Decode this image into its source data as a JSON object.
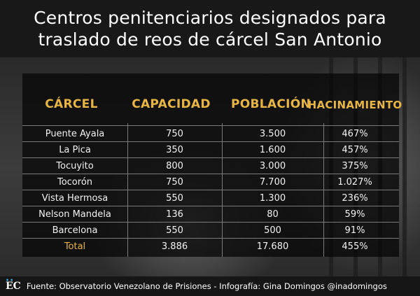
{
  "title": {
    "line1": "Centros penitenciarios designados para",
    "line2": "traslado de reos de cárcel San Antonio"
  },
  "table": {
    "headers": [
      "CÁRCEL",
      "CAPACIDAD",
      "POBLACIÓN",
      "HACINAMIENTO"
    ],
    "rows": [
      [
        "Puente Ayala",
        "750",
        "3.500",
        "467%"
      ],
      [
        "La Pica",
        "350",
        "1.600",
        "457%"
      ],
      [
        "Tocuyito",
        "800",
        "3.000",
        "375%"
      ],
      [
        "Tocorón",
        "750",
        "7.700",
        "1.027%"
      ],
      [
        "Vista Hermosa",
        "550",
        "1.300",
        "236%"
      ],
      [
        "Nelson Mandela",
        "136",
        "80",
        "59%"
      ],
      [
        "Barcelona",
        "550",
        "500",
        "91%"
      ],
      [
        "Total",
        "3.886",
        "17.680",
        "455%"
      ]
    ]
  },
  "footer": {
    "logo": "EC",
    "source": "Fuente: Observatorio Venezolano de Prisiones - Infografía: Gina Domingos @inadomingos"
  },
  "colors": {
    "accent": "#e8b544",
    "text": "#f2f2f2",
    "background": "#181818",
    "logo_dots": "#3aa7d8"
  }
}
